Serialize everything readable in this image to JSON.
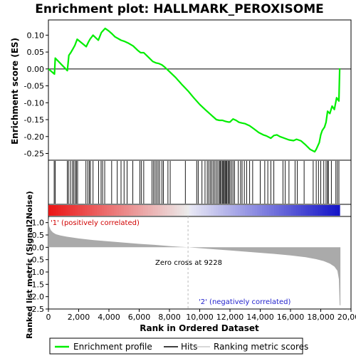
{
  "chart_data": {
    "type": "line",
    "title": "Enrichment plot: HALLMARK_PEROXISOME",
    "xlabel": "Rank in Ordered Dataset",
    "es_panel": {
      "ylabel": "Enrichment score (ES)",
      "ylim": [
        -0.27,
        0.145
      ],
      "yticks": [
        0.1,
        0.05,
        0.0,
        -0.05,
        -0.1,
        -0.15,
        -0.2,
        -0.25
      ],
      "ytick_labels": [
        "0.10",
        "0.05",
        "0.00",
        "-0.05",
        "-0.10",
        "-0.15",
        "-0.20",
        "-0.25"
      ],
      "line_color": "#00ee00",
      "series": [
        {
          "name": "Enrichment profile",
          "x": [
            0,
            400,
            450,
            1250,
            1350,
            1500,
            1650,
            1750,
            1900,
            2500,
            2650,
            2750,
            2950,
            3300,
            3500,
            3750,
            4000,
            4200,
            4400,
            4800,
            5000,
            5300,
            5600,
            5900,
            6100,
            6300,
            6600,
            6900,
            7100,
            7300,
            7500,
            7700,
            8000,
            8400,
            8800,
            9228,
            9600,
            10000,
            10400,
            10800,
            11100,
            11300,
            11500,
            11700,
            11900,
            12000,
            12200,
            12400,
            12600,
            12800,
            13000,
            13300,
            13600,
            13900,
            14200,
            14400,
            14700,
            14900,
            15100,
            15300,
            15600,
            15900,
            16200,
            16400,
            16700,
            17000,
            17300,
            17600,
            17700,
            17900,
            18000,
            18100,
            18250,
            18350,
            18450,
            18600,
            18750,
            18900,
            19050,
            19200,
            19250
          ],
          "y": [
            0.0,
            -0.015,
            0.032,
            -0.005,
            0.04,
            0.05,
            0.062,
            0.07,
            0.088,
            0.066,
            0.08,
            0.088,
            0.1,
            0.085,
            0.108,
            0.12,
            0.112,
            0.104,
            0.095,
            0.085,
            0.082,
            0.076,
            0.068,
            0.055,
            0.048,
            0.048,
            0.035,
            0.022,
            0.018,
            0.016,
            0.012,
            0.005,
            -0.008,
            -0.025,
            -0.045,
            -0.065,
            -0.085,
            -0.105,
            -0.122,
            -0.138,
            -0.15,
            -0.152,
            -0.152,
            -0.155,
            -0.157,
            -0.157,
            -0.148,
            -0.152,
            -0.158,
            -0.16,
            -0.162,
            -0.168,
            -0.178,
            -0.188,
            -0.195,
            -0.198,
            -0.205,
            -0.197,
            -0.195,
            -0.2,
            -0.205,
            -0.21,
            -0.212,
            -0.208,
            -0.213,
            -0.225,
            -0.238,
            -0.245,
            -0.238,
            -0.218,
            -0.195,
            -0.182,
            -0.172,
            -0.158,
            -0.125,
            -0.132,
            -0.11,
            -0.12,
            -0.085,
            -0.095,
            0.002
          ]
        }
      ]
    },
    "hits": [
      380,
      450,
      1250,
      1330,
      1460,
      1590,
      1680,
      1780,
      1850,
      1930,
      2480,
      2600,
      2700,
      2780,
      2950,
      3320,
      3480,
      3580,
      3720,
      4180,
      4550,
      4800,
      5000,
      5200,
      5580,
      6050,
      6150,
      6300,
      6850,
      6950,
      7050,
      7150,
      7250,
      7350,
      7500,
      7600,
      7900,
      8050,
      9050,
      9800,
      9900,
      10150,
      10350,
      10500,
      10600,
      10700,
      10800,
      10900,
      11000,
      11100,
      11200,
      11300,
      11350,
      11420,
      11500,
      11560,
      11620,
      11680,
      11740,
      11800,
      11870,
      11940,
      12000,
      12100,
      12200,
      12300,
      12550,
      12700,
      12800,
      12950,
      13100,
      13300,
      13500,
      14000,
      14300,
      14500,
      14700,
      14900,
      15500,
      15650,
      15900,
      16300,
      16450,
      16900,
      17500,
      17700,
      17850,
      18000,
      18200,
      18350,
      18450,
      18500,
      18700,
      19000,
      19100,
      19200
    ],
    "ranked_metric_panel": {
      "ylabel": "Ranked list metric (Signal2Noise)",
      "ylim": [
        -2.5,
        1.25
      ],
      "yticks": [
        1.0,
        0.5,
        0.0,
        -0.5,
        -1.0,
        -1.5,
        -2.0,
        -2.5
      ],
      "ytick_labels": [
        "1.0",
        "0.5",
        "0.0",
        "-0.5",
        "-1.0",
        "-1.5",
        "-2.0",
        "-2.5"
      ],
      "fill_color": "#aaaaaa",
      "x": [
        0,
        50,
        150,
        300,
        500,
        800,
        1200,
        2000,
        3000,
        4000,
        5000,
        6000,
        7000,
        8000,
        9228,
        10500,
        12000,
        13500,
        15000,
        16000,
        17000,
        17700,
        18200,
        18600,
        18900,
        19100,
        19200,
        19250,
        19300
      ],
      "y": [
        1.2,
        0.85,
        0.7,
        0.6,
        0.53,
        0.48,
        0.43,
        0.36,
        0.29,
        0.24,
        0.19,
        0.14,
        0.1,
        0.05,
        0.0,
        -0.06,
        -0.13,
        -0.2,
        -0.27,
        -0.33,
        -0.4,
        -0.48,
        -0.56,
        -0.66,
        -0.78,
        -0.95,
        -1.3,
        -2.35,
        -2.35
      ]
    },
    "x_axis": {
      "xlim": [
        0,
        20000
      ],
      "ticks": [
        0,
        2000,
        4000,
        6000,
        8000,
        10000,
        12000,
        14000,
        16000,
        18000,
        20000
      ],
      "tick_labels": [
        "0",
        "2,000",
        "4,000",
        "6,000",
        "8,000",
        "10,000",
        "12,000",
        "14,000",
        "16,000",
        "18,000",
        "20,000"
      ],
      "dataset_end": 19250
    },
    "annotations": {
      "positive": "'1' (positively correlated)",
      "negative": "'2' (negatively correlated)",
      "zero_cross_text": "Zero cross at 9228",
      "zero_cross": 9228
    },
    "legend": {
      "placement": "bottom",
      "items": [
        {
          "label": "Enrichment profile",
          "color": "#00ee00"
        },
        {
          "label": "Hits",
          "color": "#000000"
        },
        {
          "label": "Ranking metric scores",
          "color": "#cccccc"
        }
      ]
    }
  }
}
